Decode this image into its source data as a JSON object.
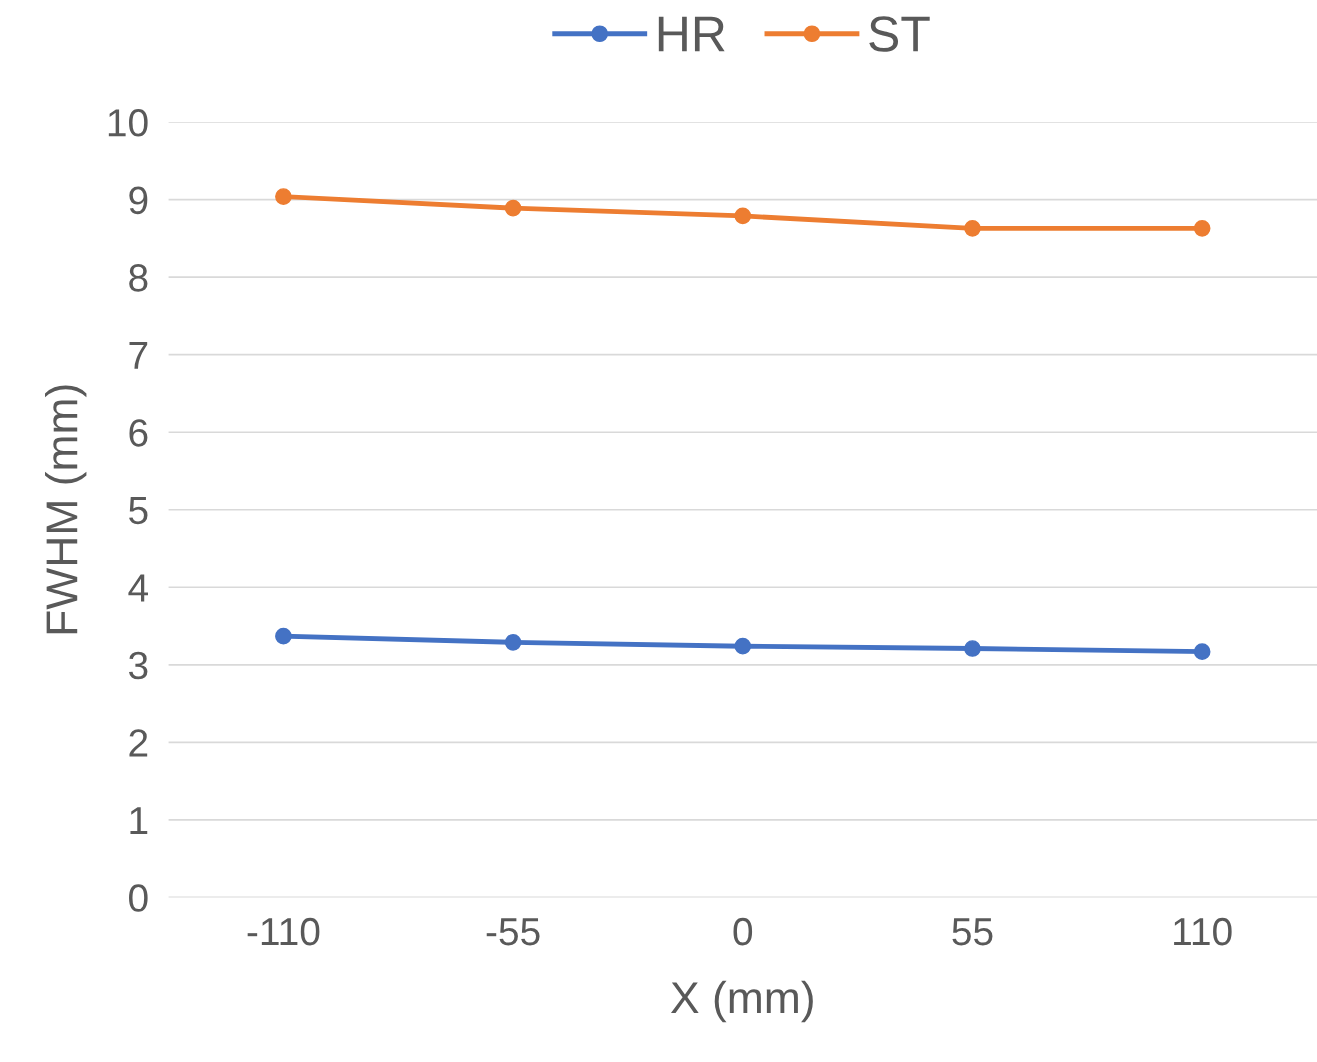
{
  "chart_data": {
    "type": "line",
    "xlabel": "X (mm)",
    "ylabel": "FWHM (mm)",
    "categories": [
      "-110",
      "-55",
      "0",
      "55",
      "110"
    ],
    "series": [
      {
        "name": "HR",
        "color": "#4472c4",
        "values": [
          3.37,
          3.29,
          3.24,
          3.21,
          3.17
        ]
      },
      {
        "name": "ST",
        "color": "#ed7d31",
        "values": [
          9.04,
          8.89,
          8.79,
          8.63,
          8.63
        ]
      }
    ],
    "ylim": [
      0,
      10
    ],
    "yticks": [
      0,
      1,
      2,
      3,
      4,
      5,
      6,
      7,
      8,
      9,
      10
    ],
    "grid": "y",
    "legend": "top",
    "marker": "circle",
    "line_style": "solid"
  }
}
